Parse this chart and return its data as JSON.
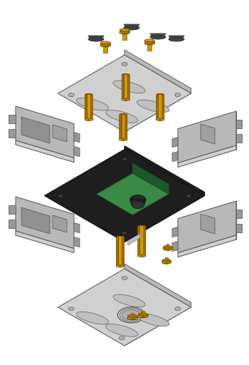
{
  "background_color": "#ffffff",
  "figsize": [
    3.5,
    5.12
  ],
  "dpi": 100,
  "colors": {
    "gray_light": "#d0d0d0",
    "gray_mid": "#b8b8b8",
    "gray_dark": "#989898",
    "gray_edge": "#606060",
    "gray_shadow": "#808080",
    "gold": "#d4960a",
    "gold_dark": "#a07008",
    "gold_light": "#e8b830",
    "gold_edge": "#7a5000",
    "pcb_green": "#3a8a45",
    "pcb_dark_green": "#2a6030",
    "pcb_black": "#1e1e1e",
    "pcb_edge": "#111111",
    "rubber": "#505050",
    "rubber_top": "#404040",
    "white": "#ffffff",
    "connector": "#aaaaaa"
  }
}
